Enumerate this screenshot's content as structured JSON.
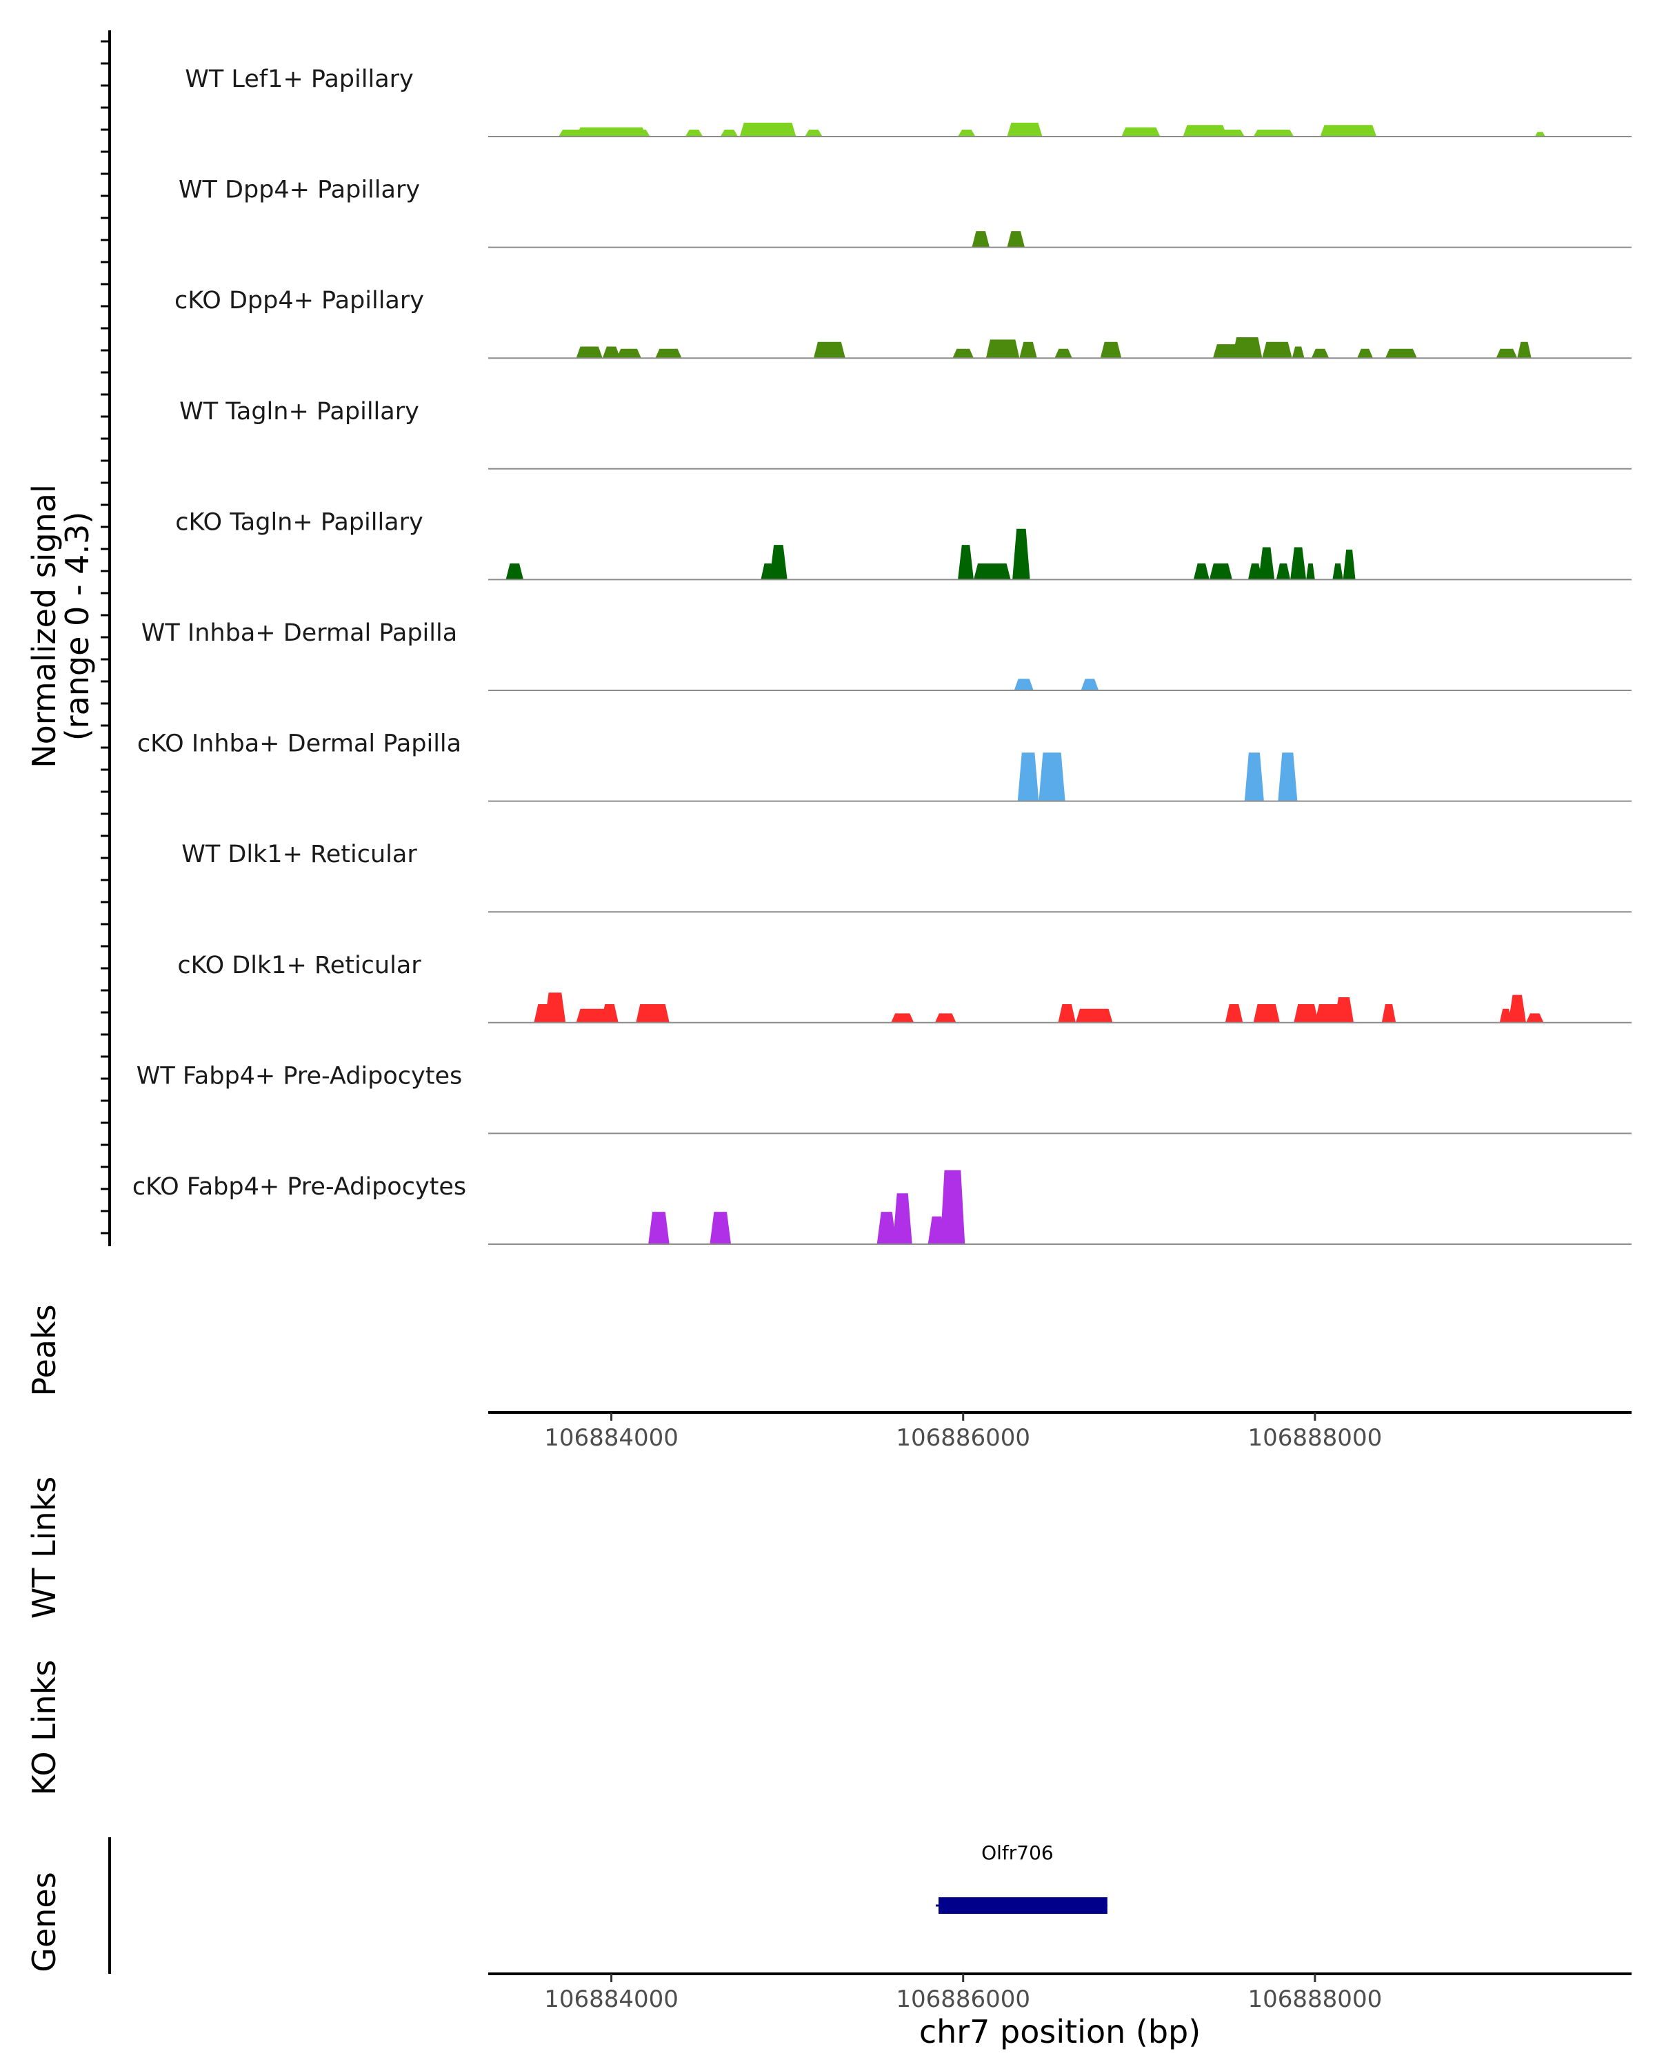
{
  "chart_data": {
    "type": "area",
    "title": "",
    "ylabel_line1": "Normalized signal",
    "ylabel_line2": "(range 0 - 4.3)",
    "ylim": [
      0,
      4.3
    ],
    "xlabel": "chr7 position (bp)",
    "xlim": [
      106883300,
      106889800
    ],
    "xticks": [
      106884000,
      106886000,
      106888000
    ],
    "xtick_labels": [
      "106884000",
      "106886000",
      "106888000"
    ],
    "tracks": [
      {
        "name": "WT Lef1+ Papillary",
        "color": "#7ed321",
        "peaks": [
          [
            106883700,
            106883850,
            0.3
          ],
          [
            106883800,
            106884200,
            0.4
          ],
          [
            106884120,
            106884220,
            0.3
          ],
          [
            106884420,
            106884520,
            0.3
          ],
          [
            106884620,
            106884720,
            0.3
          ],
          [
            106884730,
            106885050,
            0.6
          ],
          [
            106885100,
            106885200,
            0.3
          ],
          [
            106885970,
            106886070,
            0.3
          ],
          [
            106886250,
            106886450,
            0.6
          ],
          [
            106886900,
            106887120,
            0.4
          ],
          [
            106887250,
            106887500,
            0.5
          ],
          [
            106887460,
            106887600,
            0.3
          ],
          [
            106887650,
            106887880,
            0.3
          ],
          [
            106888030,
            106888350,
            0.5
          ],
          [
            106889250,
            106889310,
            0.2
          ]
        ]
      },
      {
        "name": "WT Dpp4+ Papillary",
        "color": "#4c8a0e",
        "peaks": [
          [
            106886050,
            106886150,
            0.7
          ],
          [
            106886250,
            106886350,
            0.7
          ]
        ]
      },
      {
        "name": "cKO Dpp4+ Papillary",
        "color": "#4c8a0e",
        "peaks": [
          [
            106883800,
            106883950,
            0.5
          ],
          [
            106883950,
            106884050,
            0.5
          ],
          [
            106884030,
            106884170,
            0.4
          ],
          [
            106884250,
            106884400,
            0.4
          ],
          [
            106885150,
            106885330,
            0.7
          ],
          [
            106885940,
            106886060,
            0.4
          ],
          [
            106886130,
            106886320,
            0.8
          ],
          [
            106886320,
            106886420,
            0.7
          ],
          [
            106886520,
            106886620,
            0.4
          ],
          [
            106886780,
            106886900,
            0.7
          ],
          [
            106887420,
            106887580,
            0.6
          ],
          [
            106887530,
            106887700,
            0.9
          ],
          [
            106887700,
            106887870,
            0.7
          ],
          [
            106887870,
            106887940,
            0.5
          ],
          [
            106887980,
            106888080,
            0.4
          ],
          [
            106888240,
            106888330,
            0.4
          ],
          [
            106888400,
            106888580,
            0.4
          ],
          [
            106889030,
            106889150,
            0.4
          ],
          [
            106889150,
            106889230,
            0.7
          ]
        ]
      },
      {
        "name": "WT Tagln+ Papillary",
        "color": "#006400",
        "peaks": []
      },
      {
        "name": "cKO Tagln+ Papillary",
        "color": "#006400",
        "peaks": [
          [
            106883400,
            106883500,
            0.7
          ],
          [
            106884850,
            106884930,
            0.7
          ],
          [
            106884900,
            106885000,
            1.5
          ],
          [
            106885970,
            106886060,
            1.5
          ],
          [
            106886060,
            106886270,
            0.7
          ],
          [
            106886280,
            106886380,
            2.2
          ],
          [
            106887310,
            106887400,
            0.7
          ],
          [
            106887400,
            106887530,
            0.7
          ],
          [
            106887620,
            106887700,
            0.7
          ],
          [
            106887680,
            106887770,
            1.4
          ],
          [
            106887780,
            106887860,
            0.7
          ],
          [
            106887860,
            106887950,
            1.4
          ],
          [
            106887950,
            106888000,
            0.7
          ],
          [
            106888100,
            106888160,
            0.7
          ],
          [
            106888160,
            106888230,
            1.3
          ]
        ]
      },
      {
        "name": "WT Inhba+ Dermal Papilla",
        "color": "#5aabea",
        "peaks": [
          [
            106886290,
            106886400,
            0.5
          ],
          [
            106886670,
            106886770,
            0.5
          ]
        ]
      },
      {
        "name": "cKO Inhba+ Dermal Papilla",
        "color": "#5aabea",
        "peaks": [
          [
            106886310,
            106886430,
            2.1
          ],
          [
            106886430,
            106886580,
            2.1
          ],
          [
            106887600,
            106887710,
            2.1
          ],
          [
            106887790,
            106887900,
            2.1
          ]
        ]
      },
      {
        "name": "WT Dlk1+ Reticular",
        "color": "#ff2a2a",
        "peaks": []
      },
      {
        "name": "cKO Dlk1+ Reticular",
        "color": "#ff2a2a",
        "peaks": [
          [
            106883560,
            106883660,
            0.8
          ],
          [
            106883620,
            106883740,
            1.3
          ],
          [
            106883800,
            106883980,
            0.6
          ],
          [
            106883940,
            106884040,
            0.8
          ],
          [
            106884140,
            106884330,
            0.8
          ],
          [
            106885590,
            106885720,
            0.4
          ],
          [
            106885840,
            106885960,
            0.4
          ],
          [
            106886540,
            106886640,
            0.8
          ],
          [
            106886640,
            106886850,
            0.6
          ],
          [
            106887490,
            106887590,
            0.8
          ],
          [
            106887650,
            106887800,
            0.8
          ],
          [
            106887880,
            106888020,
            0.8
          ],
          [
            106888000,
            106888150,
            0.8
          ],
          [
            106888110,
            106888220,
            1.1
          ],
          [
            106888380,
            106888460,
            0.8
          ],
          [
            106889050,
            106889120,
            0.6
          ],
          [
            106889100,
            106889200,
            1.2
          ],
          [
            106889200,
            106889300,
            0.4
          ]
        ]
      },
      {
        "name": "WT Fabp4+ Pre-Adipocytes",
        "color": "#b030e8",
        "peaks": []
      },
      {
        "name": "cKO Fabp4+ Pre-Adipocytes",
        "color": "#b030e8",
        "peaks": [
          [
            106884210,
            106884330,
            1.4
          ],
          [
            106884560,
            106884680,
            1.4
          ],
          [
            106885510,
            106885620,
            1.4
          ],
          [
            106885600,
            106885710,
            2.2
          ],
          [
            106885800,
            106885900,
            1.2
          ],
          [
            106885870,
            106886010,
            3.2
          ]
        ]
      }
    ],
    "extra_track_labels": [
      "Peaks",
      "WT Links",
      "KO Links",
      "Genes"
    ],
    "genes": [
      {
        "name": "Olfr706",
        "start": 106885860,
        "end": 106886820,
        "color": "#00008b"
      }
    ]
  }
}
